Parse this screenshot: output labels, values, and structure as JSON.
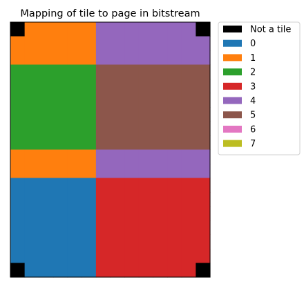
{
  "chart_data": {
    "type": "heatmap",
    "title": "Mapping of tile to page in bitstream",
    "xlabel": "",
    "ylabel": "",
    "grid": false,
    "ticks": "none",
    "legend_position": "outside-top-right",
    "colors": {
      "-1": "#000000",
      "0": "#1f77b4",
      "1": "#ff7f0e",
      "2": "#2ca02c",
      "3": "#d62728",
      "4": "#9467bd",
      "5": "#8c564b",
      "6": "#e377c2",
      "7": "#bcbd22"
    },
    "legend": [
      {
        "value": -1,
        "label": "Not a tile"
      },
      {
        "value": 0,
        "label": "0"
      },
      {
        "value": 1,
        "label": "1"
      },
      {
        "value": 2,
        "label": "2"
      },
      {
        "value": 3,
        "label": "3"
      },
      {
        "value": 4,
        "label": "4"
      },
      {
        "value": 5,
        "label": "5"
      },
      {
        "value": 6,
        "label": "6"
      },
      {
        "value": 7,
        "label": "7"
      }
    ],
    "grid_values": [
      [
        -1,
        1,
        1,
        1,
        1,
        1,
        4,
        4,
        4,
        4,
        4,
        4,
        4,
        -1
      ],
      [
        1,
        1,
        1,
        1,
        1,
        1,
        4,
        4,
        4,
        4,
        4,
        4,
        4,
        4
      ],
      [
        1,
        1,
        1,
        1,
        1,
        1,
        4,
        4,
        4,
        4,
        4,
        4,
        4,
        4
      ],
      [
        2,
        2,
        2,
        2,
        2,
        2,
        5,
        5,
        5,
        5,
        5,
        5,
        5,
        5
      ],
      [
        2,
        2,
        2,
        2,
        2,
        2,
        5,
        5,
        5,
        5,
        5,
        5,
        5,
        5
      ],
      [
        2,
        2,
        2,
        2,
        2,
        2,
        5,
        5,
        5,
        5,
        5,
        5,
        5,
        5
      ],
      [
        2,
        2,
        2,
        2,
        2,
        2,
        5,
        5,
        5,
        5,
        5,
        5,
        5,
        5
      ],
      [
        2,
        2,
        2,
        2,
        2,
        2,
        5,
        5,
        5,
        5,
        5,
        5,
        5,
        5
      ],
      [
        2,
        2,
        2,
        2,
        2,
        2,
        5,
        5,
        5,
        5,
        5,
        5,
        5,
        5
      ],
      [
        1,
        1,
        1,
        1,
        1,
        1,
        4,
        4,
        4,
        4,
        4,
        4,
        4,
        4
      ],
      [
        1,
        1,
        1,
        1,
        1,
        1,
        4,
        4,
        4,
        4,
        4,
        4,
        4,
        4
      ],
      [
        0,
        0,
        0,
        0,
        0,
        0,
        3,
        3,
        3,
        3,
        3,
        3,
        3,
        3
      ],
      [
        0,
        0,
        0,
        0,
        0,
        0,
        3,
        3,
        3,
        3,
        3,
        3,
        3,
        3
      ],
      [
        0,
        0,
        0,
        0,
        0,
        0,
        3,
        3,
        3,
        3,
        3,
        3,
        3,
        3
      ],
      [
        0,
        0,
        0,
        0,
        0,
        0,
        3,
        3,
        3,
        3,
        3,
        3,
        3,
        3
      ],
      [
        0,
        0,
        0,
        0,
        0,
        0,
        3,
        3,
        3,
        3,
        3,
        3,
        3,
        3
      ],
      [
        0,
        0,
        0,
        0,
        0,
        0,
        3,
        3,
        3,
        3,
        3,
        3,
        3,
        3
      ],
      [
        -1,
        0,
        0,
        0,
        0,
        0,
        3,
        3,
        3,
        3,
        3,
        3,
        3,
        -1
      ]
    ]
  }
}
